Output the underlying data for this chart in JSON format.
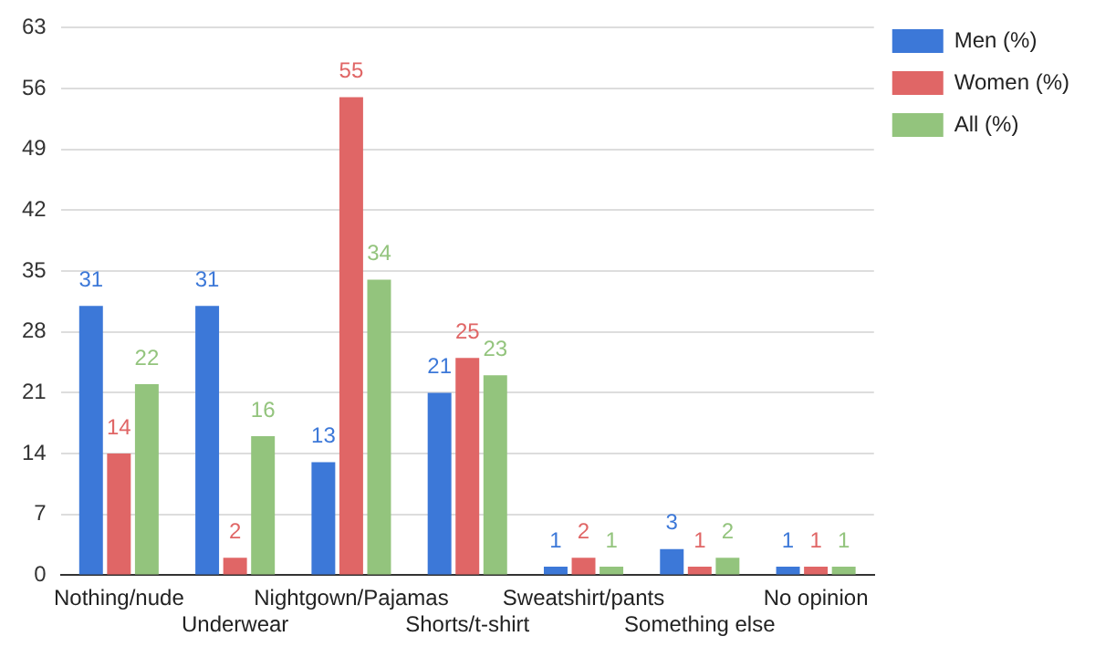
{
  "chart_data": {
    "type": "bar",
    "categories": [
      "Nothing/nude",
      "Underwear",
      "Nightgown/Pajamas",
      "Shorts/t-shirt",
      "Sweatshirt/pants",
      "Something else",
      "No opinion"
    ],
    "series": [
      {
        "name": "Men (%)",
        "color": "#3c78d8",
        "values": [
          31,
          31,
          13,
          21,
          1,
          3,
          1
        ]
      },
      {
        "name": "Women (%)",
        "color": "#e06666",
        "values": [
          14,
          2,
          55,
          25,
          2,
          1,
          1
        ]
      },
      {
        "name": "All (%)",
        "color": "#93c47d",
        "values": [
          22,
          16,
          34,
          23,
          1,
          2,
          1
        ]
      }
    ],
    "ylim": [
      0,
      63
    ],
    "yticks": [
      0,
      7,
      14,
      21,
      28,
      35,
      42,
      49,
      56,
      63
    ],
    "grid": "y",
    "legend": "top right",
    "data_labels": true
  }
}
